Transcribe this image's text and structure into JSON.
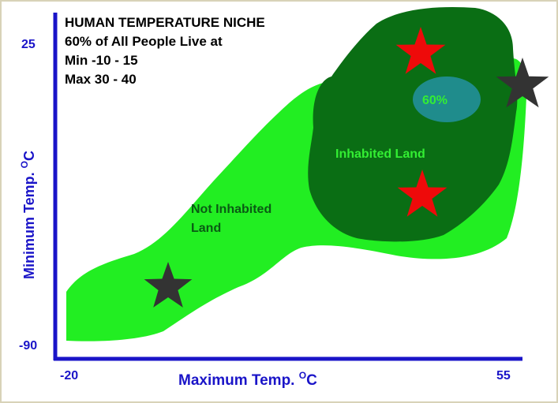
{
  "title_block": {
    "line1": "HUMAN TEMPERATURE NICHE",
    "line2": "60% of All People Live at",
    "line3": "Min -10 - 15",
    "line4": "Max 30 - 40"
  },
  "axes": {
    "x_label": "Maximum Temp.",
    "x_unit_sup": "O",
    "x_unit": "C",
    "y_label": "Minimum Temp.",
    "y_unit_sup": "O",
    "y_unit": "C",
    "x_min_label": "-20",
    "x_max_label": "55",
    "y_min_label": "-90",
    "y_max_label": "25"
  },
  "regions": {
    "not_inhabited_line1": "Not Inhabited",
    "not_inhabited_line2": "Land",
    "inhabited": "Inhabited Land",
    "core": "60%"
  },
  "colors": {
    "axis": "#1a14c8",
    "not_inhabited_fill": "#22ee22",
    "inhabited_fill": "#0a6e14",
    "core_fill": "#1f8c8c",
    "inhabited_label": "#33ee33",
    "not_inhabited_label": "#0a5a14",
    "core_label": "#33ee33",
    "star_red": "#ee0a0a",
    "star_dark": "#333333"
  },
  "markers": [
    {
      "name": "red-star",
      "color": "red"
    },
    {
      "name": "red-star",
      "color": "red"
    },
    {
      "name": "dark-star",
      "color": "dark"
    },
    {
      "name": "dark-star",
      "color": "dark"
    }
  ]
}
